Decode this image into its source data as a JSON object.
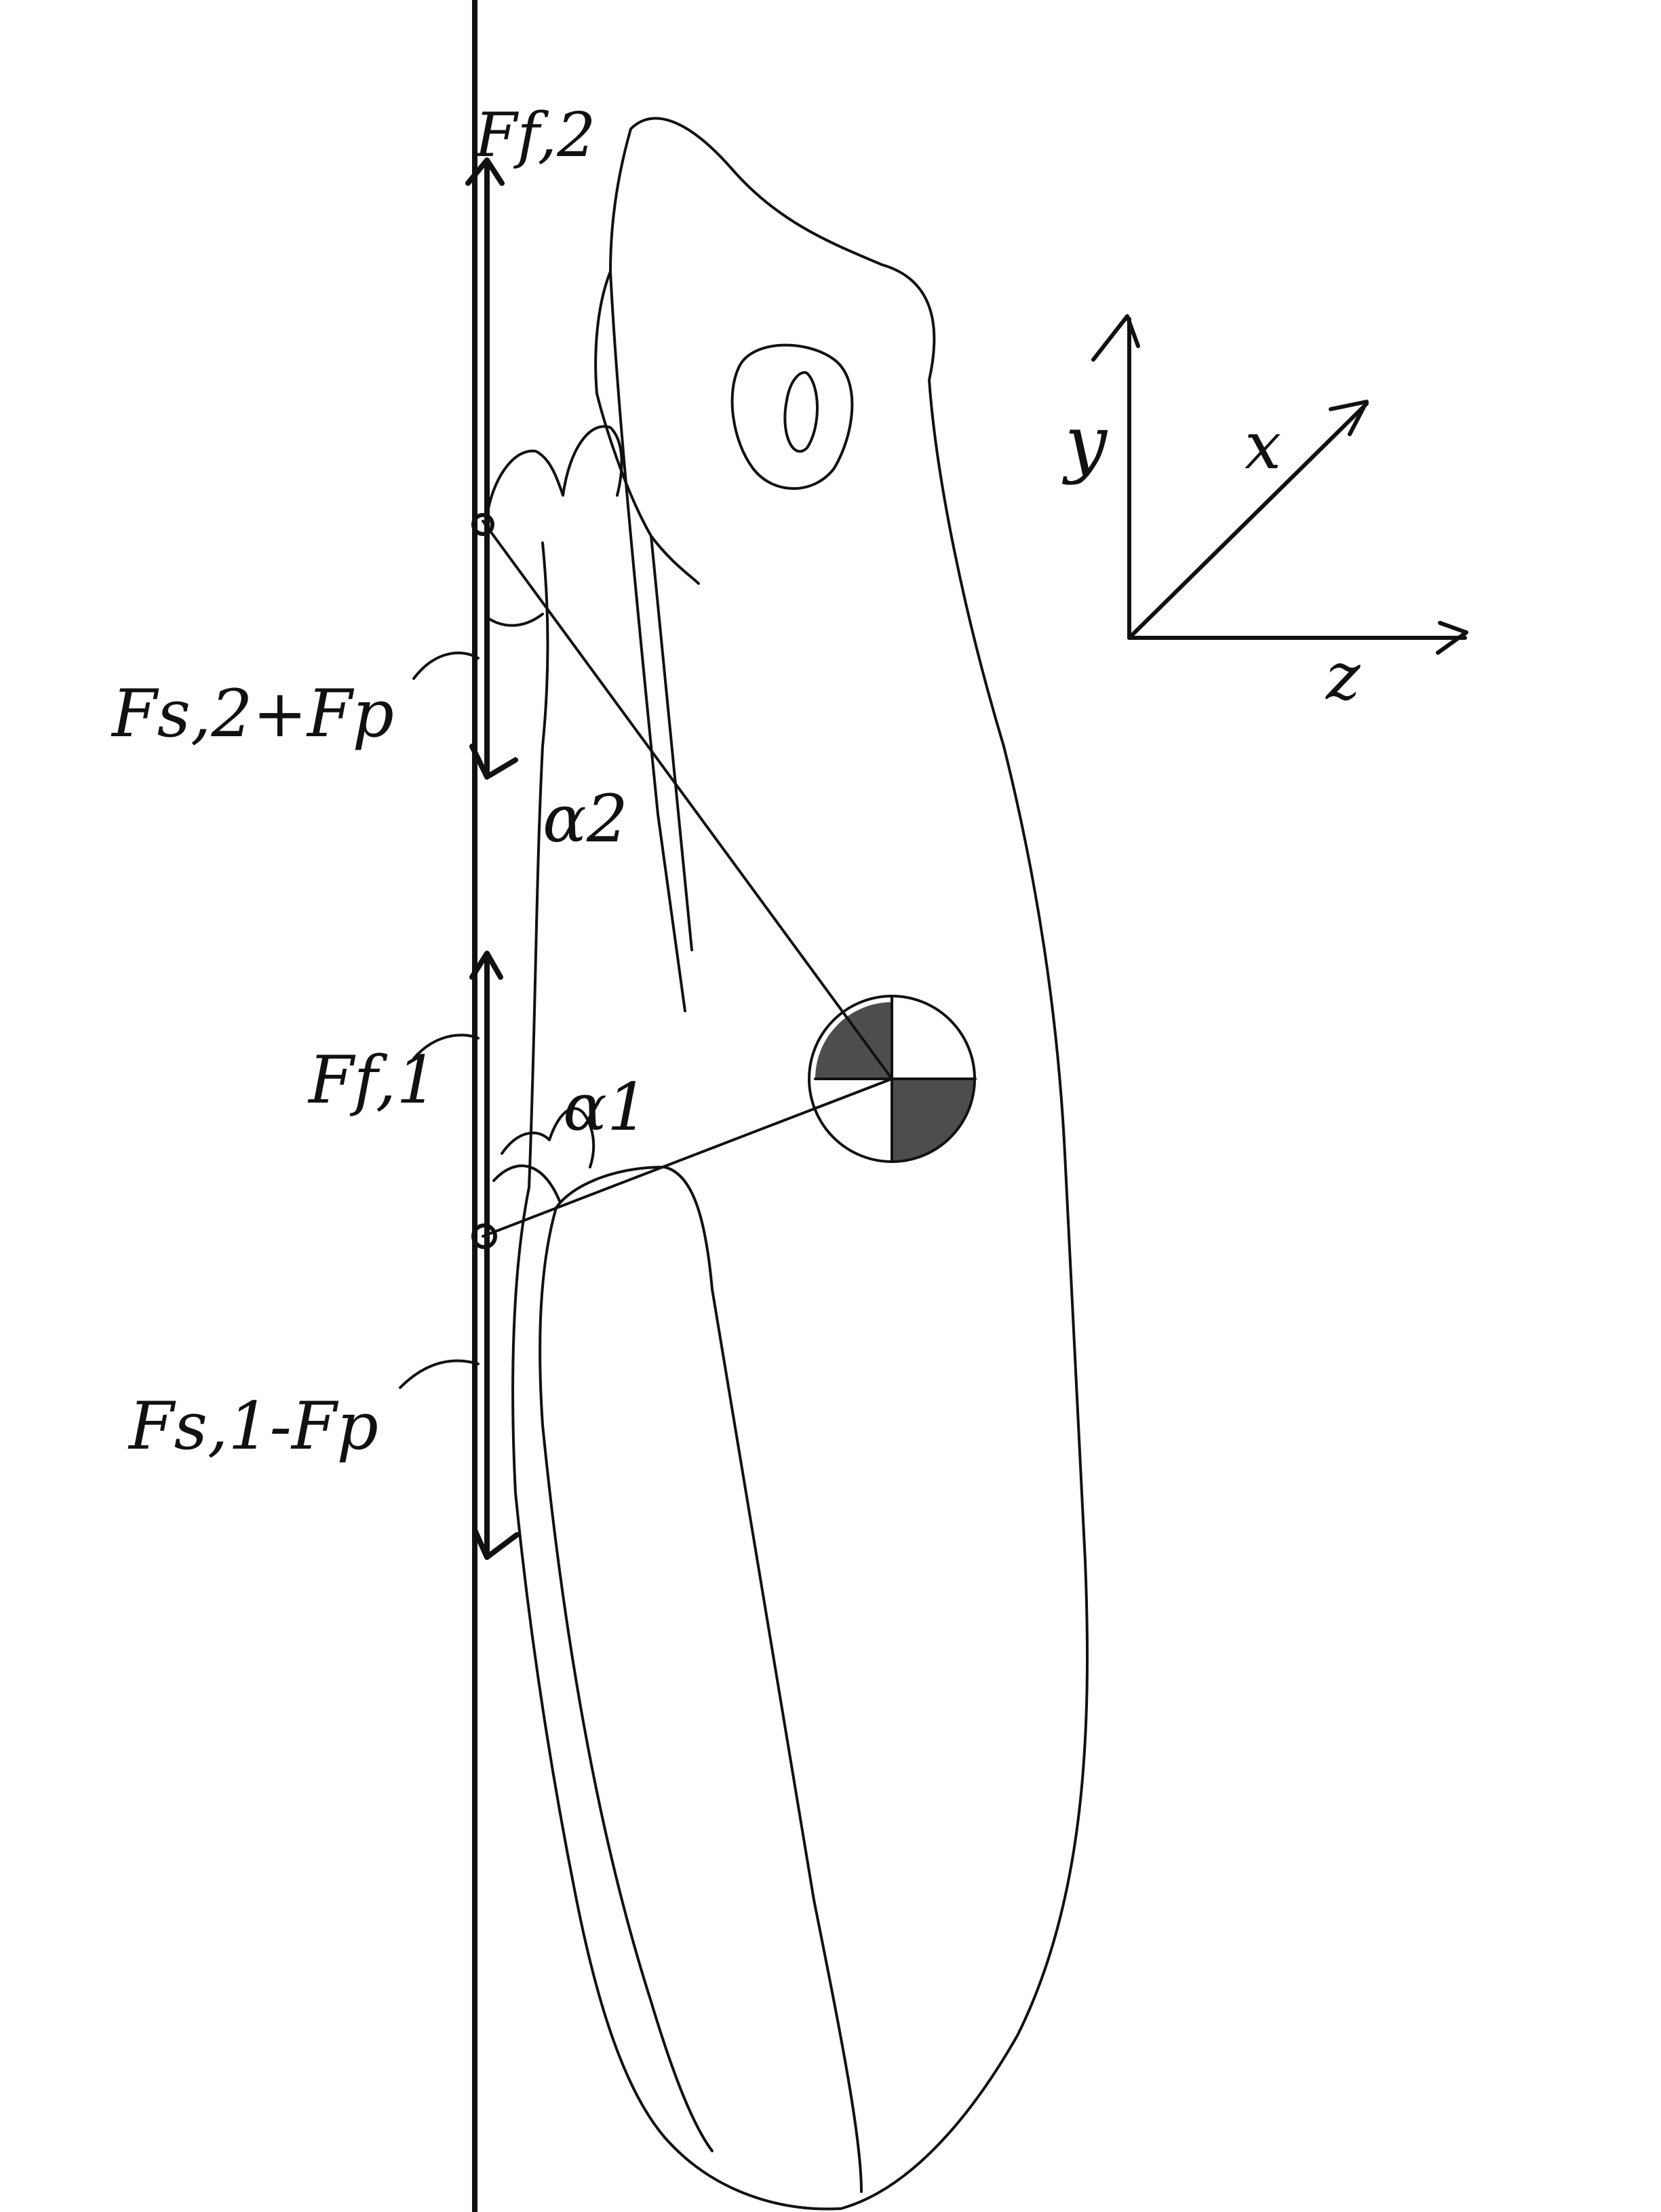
{
  "labels": {
    "ff2": "Ff,2",
    "fs2_fp": "Fs,2+Fp",
    "alpha2": "α2",
    "ff1": "Ff,1",
    "alpha1": "α1",
    "fs1_fp": "Fs,1-Fp",
    "axis_y": "y",
    "axis_x": "x",
    "axis_z": "z"
  },
  "colors": {
    "ink": "#111111",
    "paper": "#ffffff"
  }
}
